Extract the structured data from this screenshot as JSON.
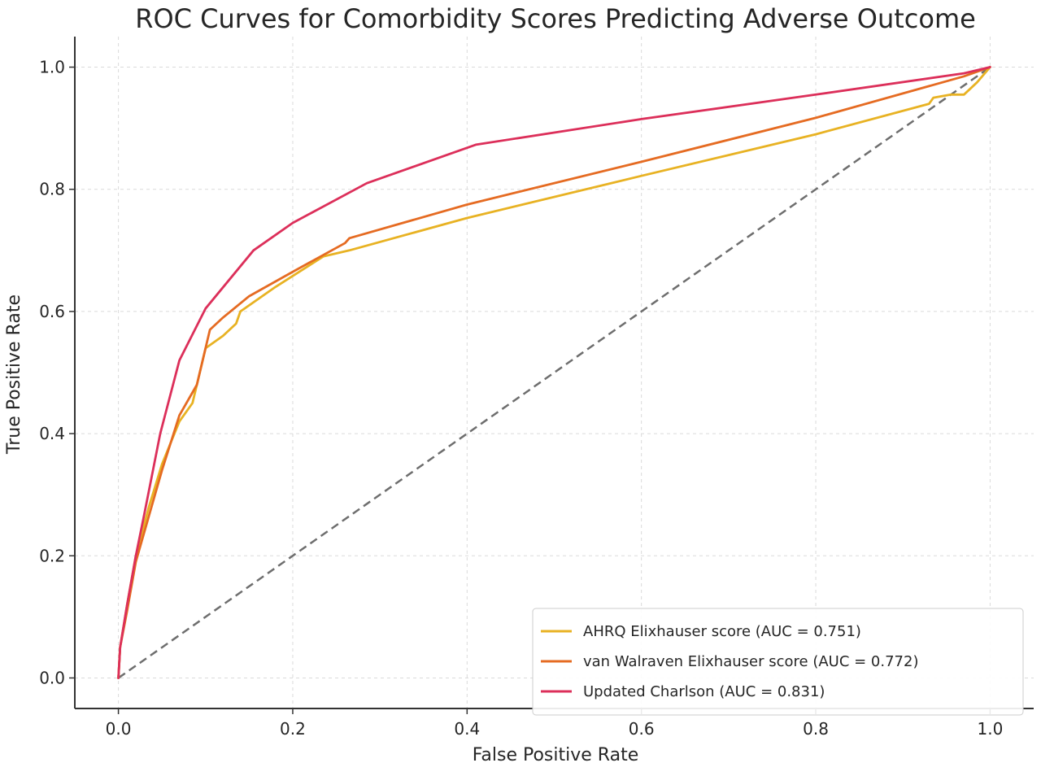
{
  "chart_data": {
    "type": "line",
    "title": "ROC Curves for Comorbidity Scores Predicting Adverse Outcome",
    "xlabel": "False Positive Rate",
    "ylabel": "True Positive Rate",
    "xlim": [
      -0.05,
      1.05
    ],
    "ylim": [
      -0.05,
      1.05
    ],
    "xticks": [
      0.0,
      0.2,
      0.4,
      0.6,
      0.8,
      1.0
    ],
    "yticks": [
      0.0,
      0.2,
      0.4,
      0.6,
      0.8,
      1.0
    ],
    "x_tick_labels": [
      "0.0",
      "0.2",
      "0.4",
      "0.6",
      "0.8",
      "1.0"
    ],
    "y_tick_labels": [
      "0.0",
      "0.2",
      "0.4",
      "0.6",
      "0.8",
      "1.0"
    ],
    "grid": true,
    "legend_position": "lower-right",
    "reference_line": {
      "points": [
        [
          0,
          0
        ],
        [
          1,
          1
        ]
      ],
      "color": "#6e6e6e",
      "style": "dashed"
    },
    "series": [
      {
        "name": "AHRQ Elixhauser score (AUC = 0.751)",
        "color": "#e8b223",
        "points": [
          [
            0.0,
            0.0
          ],
          [
            0.002,
            0.05
          ],
          [
            0.01,
            0.12
          ],
          [
            0.02,
            0.2
          ],
          [
            0.035,
            0.28
          ],
          [
            0.05,
            0.35
          ],
          [
            0.07,
            0.42
          ],
          [
            0.085,
            0.45
          ],
          [
            0.1,
            0.54
          ],
          [
            0.12,
            0.56
          ],
          [
            0.135,
            0.58
          ],
          [
            0.14,
            0.6
          ],
          [
            0.18,
            0.64
          ],
          [
            0.235,
            0.69
          ],
          [
            0.265,
            0.7
          ],
          [
            0.4,
            0.753
          ],
          [
            0.6,
            0.822
          ],
          [
            0.8,
            0.89
          ],
          [
            0.93,
            0.94
          ],
          [
            0.935,
            0.95
          ],
          [
            0.955,
            0.955
          ],
          [
            0.97,
            0.955
          ],
          [
            0.985,
            0.975
          ],
          [
            1.0,
            1.0
          ]
        ]
      },
      {
        "name": "van Walraven Elixhauser score (AUC = 0.772)",
        "color": "#e56b22",
        "points": [
          [
            0.0,
            0.0
          ],
          [
            0.002,
            0.05
          ],
          [
            0.01,
            0.11
          ],
          [
            0.02,
            0.19
          ],
          [
            0.03,
            0.24
          ],
          [
            0.05,
            0.34
          ],
          [
            0.07,
            0.43
          ],
          [
            0.09,
            0.48
          ],
          [
            0.105,
            0.57
          ],
          [
            0.12,
            0.59
          ],
          [
            0.15,
            0.625
          ],
          [
            0.2,
            0.665
          ],
          [
            0.26,
            0.712
          ],
          [
            0.265,
            0.72
          ],
          [
            0.4,
            0.775
          ],
          [
            0.6,
            0.845
          ],
          [
            0.8,
            0.917
          ],
          [
            0.97,
            0.985
          ],
          [
            1.0,
            1.0
          ]
        ]
      },
      {
        "name": "Updated Charlson (AUC = 0.831)",
        "color": "#dc2f5a",
        "points": [
          [
            0.0,
            0.0
          ],
          [
            0.002,
            0.05
          ],
          [
            0.01,
            0.12
          ],
          [
            0.02,
            0.2
          ],
          [
            0.03,
            0.27
          ],
          [
            0.048,
            0.4
          ],
          [
            0.07,
            0.52
          ],
          [
            0.1,
            0.605
          ],
          [
            0.155,
            0.7
          ],
          [
            0.2,
            0.745
          ],
          [
            0.285,
            0.81
          ],
          [
            0.41,
            0.873
          ],
          [
            0.6,
            0.915
          ],
          [
            0.8,
            0.955
          ],
          [
            0.97,
            0.99
          ],
          [
            1.0,
            1.0
          ]
        ]
      }
    ]
  }
}
